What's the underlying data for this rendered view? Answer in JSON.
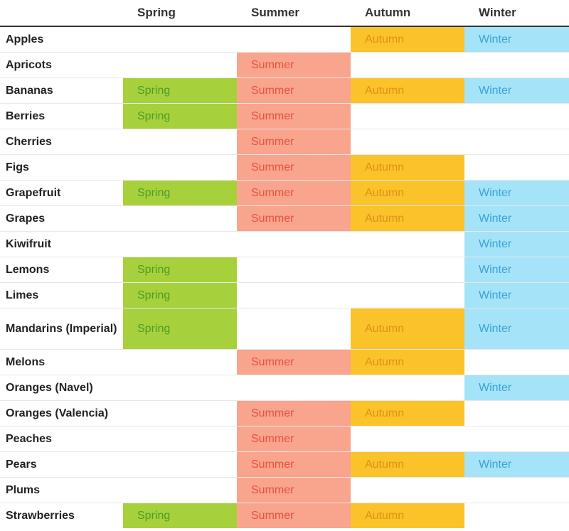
{
  "headers": {
    "fruit": "",
    "spring": "Spring",
    "summer": "Summer",
    "autumn": "Autumn",
    "winter": "Winter"
  },
  "colors": {
    "spring_bg": "#a6d13d",
    "spring_text": "#4e9c25",
    "summer_bg": "#f9a48c",
    "summer_text": "#e35245",
    "autumn_bg": "#fbc32a",
    "autumn_text": "#e08f1a",
    "winter_bg": "#a5e3f8",
    "winter_text": "#3ba2d8"
  },
  "rows": [
    {
      "fruit": "Apples",
      "spring": "",
      "summer": "",
      "autumn": "Autumn",
      "winter": "Winter"
    },
    {
      "fruit": "Apricots",
      "spring": "",
      "summer": "Summer",
      "autumn": "",
      "winter": ""
    },
    {
      "fruit": "Bananas",
      "spring": "Spring",
      "summer": "Summer",
      "autumn": "Autumn",
      "winter": "Winter"
    },
    {
      "fruit": "Berries",
      "spring": "Spring",
      "summer": "Summer",
      "autumn": "",
      "winter": ""
    },
    {
      "fruit": "Cherries",
      "spring": "",
      "summer": "Summer",
      "autumn": "",
      "winter": ""
    },
    {
      "fruit": "Figs",
      "spring": "",
      "summer": "Summer",
      "autumn": "Autumn",
      "winter": ""
    },
    {
      "fruit": "Grapefruit",
      "spring": "Spring",
      "summer": "Summer",
      "autumn": "Autumn",
      "winter": "Winter"
    },
    {
      "fruit": "Grapes",
      "spring": "",
      "summer": "Summer",
      "autumn": "Autumn",
      "winter": "Winter"
    },
    {
      "fruit": "Kiwifruit",
      "spring": "",
      "summer": "",
      "autumn": "",
      "winter": "Winter"
    },
    {
      "fruit": "Lemons",
      "spring": "Spring",
      "summer": "",
      "autumn": "",
      "winter": "Winter"
    },
    {
      "fruit": "Limes",
      "spring": "Spring",
      "summer": "",
      "autumn": "",
      "winter": "Winter"
    },
    {
      "fruit": "Mandarins (Imperial)",
      "spring": "Spring",
      "summer": "",
      "autumn": "Autumn",
      "winter": "Winter"
    },
    {
      "fruit": "Melons",
      "spring": "",
      "summer": "Summer",
      "autumn": "Autumn",
      "winter": ""
    },
    {
      "fruit": "Oranges (Navel)",
      "spring": "",
      "summer": "",
      "autumn": "",
      "winter": "Winter"
    },
    {
      "fruit": "Oranges (Valencia)",
      "spring": "",
      "summer": "Summer",
      "autumn": "Autumn",
      "winter": ""
    },
    {
      "fruit": "Peaches",
      "spring": "",
      "summer": "Summer",
      "autumn": "",
      "winter": ""
    },
    {
      "fruit": "Pears",
      "spring": "",
      "summer": "Summer",
      "autumn": "Autumn",
      "winter": "Winter"
    },
    {
      "fruit": "Plums",
      "spring": "",
      "summer": "Summer",
      "autumn": "",
      "winter": ""
    },
    {
      "fruit": "Strawberries",
      "spring": "Spring",
      "summer": "Summer",
      "autumn": "Autumn",
      "winter": ""
    }
  ]
}
